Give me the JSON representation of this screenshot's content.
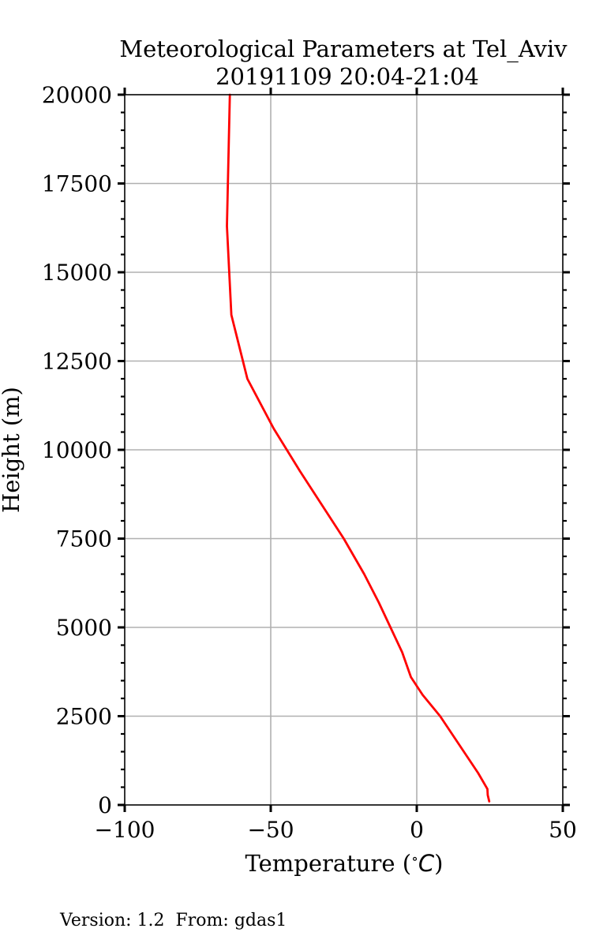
{
  "chart_data": {
    "type": "line",
    "title": "Meteorological Parameters at Tel_Aviv",
    "subtitle": "20191109 20:04-21:04",
    "xlabel": "Temperature ($^\\circ C$)",
    "xlabel_text": "Temperature (",
    "xlabel_degree": "∘",
    "xlabel_unit": "C",
    "xlabel_close": ")",
    "ylabel": "Height (m)",
    "xlim": [
      -100,
      50
    ],
    "ylim": [
      0,
      20000
    ],
    "x_ticks": [
      -100,
      -50,
      0,
      50
    ],
    "x_tick_labels": [
      "−100",
      "−50",
      "0",
      "50"
    ],
    "y_ticks": [
      0,
      2500,
      5000,
      7500,
      10000,
      12500,
      15000,
      17500,
      20000
    ],
    "y_tick_labels": [
      "0",
      "2500",
      "5000",
      "7500",
      "10000",
      "12500",
      "15000",
      "17500",
      "20000"
    ],
    "grid": true,
    "series": [
      {
        "color": "#ff0000",
        "points": [
          [
            24.8,
            100
          ],
          [
            24.3,
            280
          ],
          [
            24.2,
            450
          ],
          [
            21,
            900
          ],
          [
            8,
            2500
          ],
          [
            2,
            3100
          ],
          [
            -2,
            3600
          ],
          [
            -5,
            4300
          ],
          [
            -13,
            5700
          ],
          [
            -18,
            6500
          ],
          [
            -25,
            7500
          ],
          [
            -40,
            9400
          ],
          [
            -49,
            10600
          ],
          [
            -58,
            12000
          ],
          [
            -63.5,
            13800
          ],
          [
            -65,
            16300
          ],
          [
            -64,
            20000
          ]
        ]
      }
    ]
  },
  "footer": {
    "text": "Version: 1.2  From: gdas1"
  }
}
